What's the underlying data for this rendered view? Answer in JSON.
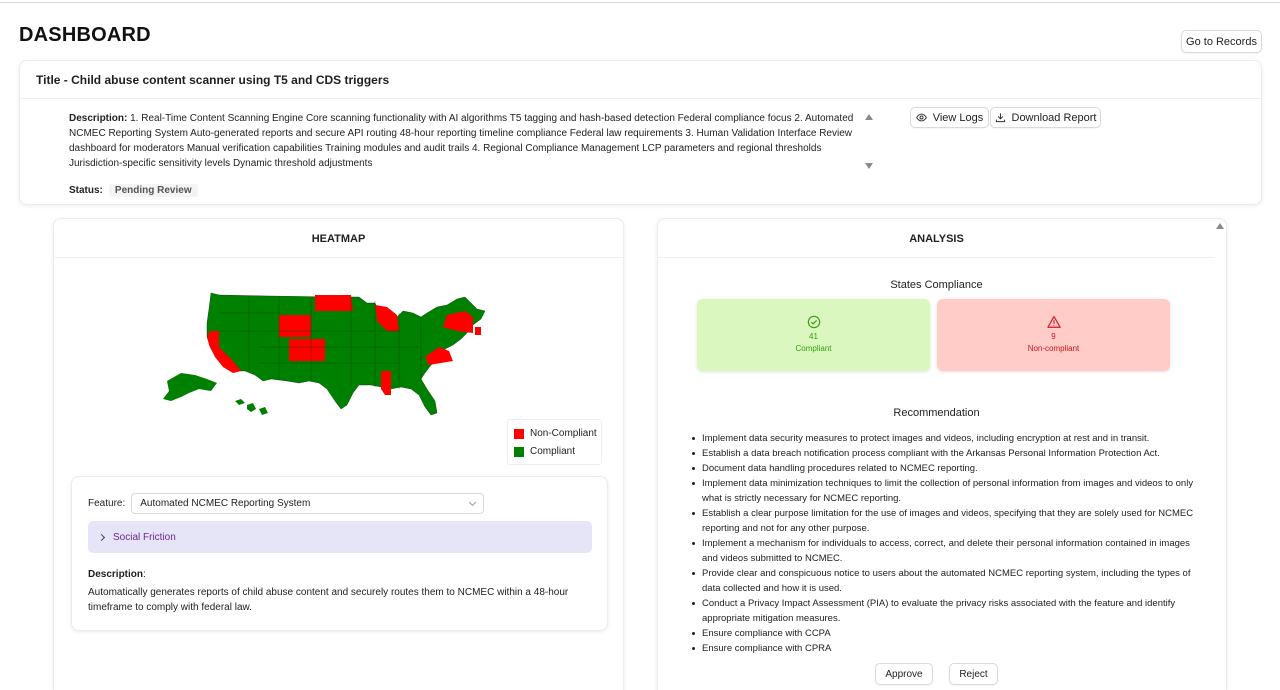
{
  "page": {
    "title": "DASHBOARD",
    "records_button": "Go to Records"
  },
  "info": {
    "title": "Title - Child abuse content scanner using T5 and CDS triggers",
    "description_label": "Description:",
    "description_text": "1. Real-Time Content Scanning Engine Core scanning functionality with AI algorithms T5 tagging and hash-based detection Federal compliance focus 2. Automated NCMEC Reporting System Auto-generated reports and secure API routing 48-hour reporting timeline compliance Federal law requirements 3. Human Validation Interface Review dashboard for moderators Manual verification capabilities Training modules and audit trails 4. Regional Compliance Management LCP parameters and regional thresholds Jurisdiction-specific sensitivity levels Dynamic threshold adjustments",
    "status_label": "Status:",
    "status_value": "Pending Review",
    "view_logs": "View Logs",
    "download_report": "Download Report"
  },
  "heatmap": {
    "title": "HEATMAP",
    "colors": {
      "non_compliant": "#ff0000",
      "compliant": "#008000"
    },
    "legend": {
      "non_compliant": "Non-Compliant",
      "compliant": "Compliant"
    },
    "feature_label": "Feature:",
    "feature_selected": "Automated NCMEC Reporting System",
    "collapse_label": "Social Friction",
    "description_label": "Description",
    "description_text": "Automatically generates reports of child abuse content and securely routes them to NCMEC within a 48-hour timeframe to comply with federal law."
  },
  "analysis": {
    "title": "ANALYSIS",
    "states_title": "States Compliance",
    "compliant_count": "41",
    "compliant_label": "Compliant",
    "non_compliant_count": "9",
    "non_compliant_label": "Non-compliant",
    "recommendation_title": "Recommendation",
    "recommendations": [
      "Implement data security measures to protect images and videos, including encryption at rest and in transit.",
      "Establish a data breach notification process compliant with the Arkansas Personal Information Protection Act.",
      "Document data handling procedures related to NCMEC reporting.",
      "Implement data minimization techniques to limit the collection of personal information from images and videos to only what is strictly necessary for NCMEC reporting.",
      "Establish a clear purpose limitation for the use of images and videos, specifying that they are solely used for NCMEC reporting and not for any other purpose.",
      "Implement a mechanism for individuals to access, correct, and delete their personal information contained in images and videos submitted to NCMEC.",
      "Provide clear and conspicuous notice to users about the automated NCMEC reporting system, including the types of data collected and how it is used.",
      "Conduct a Privacy Impact Assessment (PIA) to evaluate the privacy risks associated with the feature and identify appropriate mitigation measures.",
      "Ensure compliance with CCPA",
      "Ensure compliance with CPRA"
    ],
    "approve": "Approve",
    "reject": "Reject"
  }
}
